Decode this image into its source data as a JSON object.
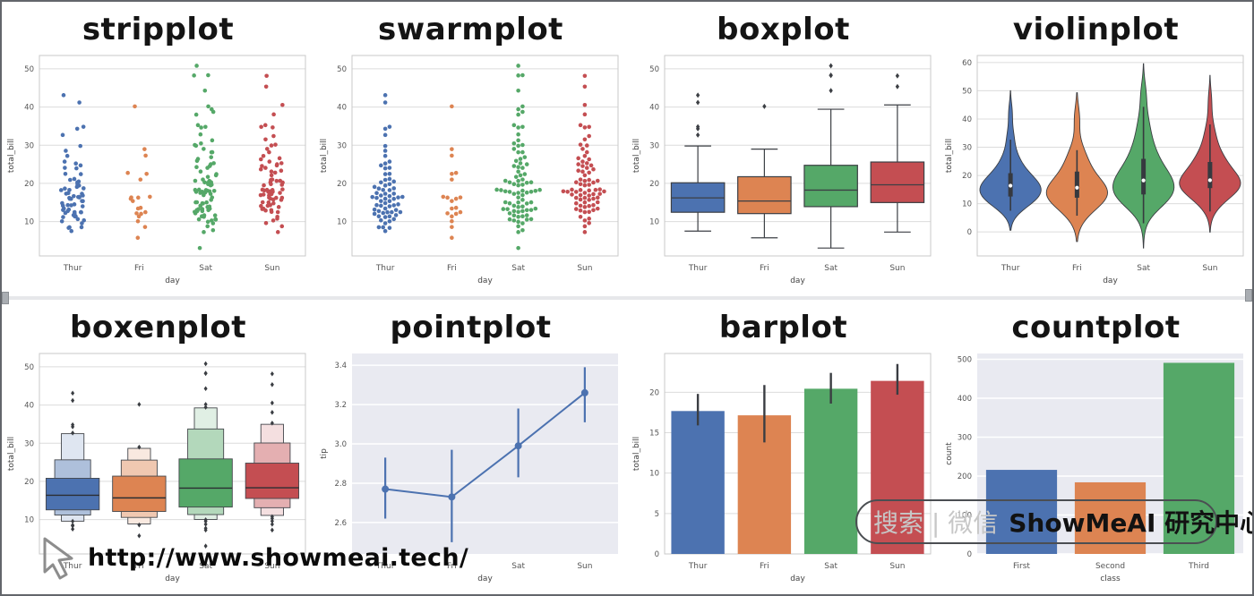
{
  "colors": {
    "palette": [
      "#4c72b0",
      "#dd8452",
      "#55a868",
      "#c44e52"
    ],
    "grid_bg": "#e9eaf1",
    "whitegrid_line": "#dcdcdc",
    "spine": "#c9c9c9",
    "tick_text": "#555555",
    "element_edge": "#3c3f44"
  },
  "datasets": {
    "tips_total_bill": [
      [
        7.51,
        8.35,
        8.51,
        8.52,
        9.55,
        10.07,
        10.33,
        10.65,
        11.17,
        11.35,
        11.38,
        11.69,
        12.03,
        12.26,
        12.43,
        12.46,
        12.48,
        12.74,
        13.03,
        13.16,
        13.42,
        14.0,
        14.15,
        14.26,
        14.31,
        14.52,
        14.83,
        15.36,
        15.38,
        15.95,
        15.98,
        16.2,
        16.32,
        16.43,
        16.47,
        16.66,
        16.82,
        17.29,
        17.31,
        17.47,
        18.24,
        18.28,
        18.64,
        18.71,
        19.08,
        19.44,
        19.81,
        20.27,
        20.49,
        20.92,
        21.16,
        22.42,
        22.49,
        23.95,
        24.08,
        24.71,
        25.21,
        25.71,
        27.2,
        28.55,
        29.8,
        32.68,
        34.3,
        34.83,
        41.19,
        43.11
      ],
      [
        5.75,
        8.58,
        10.09,
        11.35,
        12.03,
        12.16,
        12.46,
        13.42,
        13.61,
        15.38,
        15.98,
        16.27,
        16.32,
        16.49,
        21.01,
        22.49,
        22.75,
        27.28,
        28.97,
        40.17
      ],
      [
        3.07,
        7.25,
        7.74,
        8.77,
        9.55,
        9.94,
        10.29,
        10.51,
        10.59,
        10.63,
        11.24,
        11.38,
        11.61,
        11.64,
        12.16,
        12.54,
        12.74,
        12.76,
        13.0,
        13.03,
        13.27,
        13.28,
        13.39,
        13.81,
        13.94,
        14.15,
        14.73,
        14.78,
        15.01,
        15.04,
        15.06,
        15.69,
        16.31,
        16.93,
        17.26,
        17.51,
        17.59,
        17.78,
        17.81,
        17.92,
        18.04,
        18.09,
        18.24,
        18.29,
        18.35,
        19.49,
        19.65,
        19.82,
        20.16,
        20.27,
        20.29,
        20.65,
        20.69,
        21.01,
        21.7,
        22.12,
        22.42,
        23.1,
        24.06,
        24.27,
        24.55,
        25.0,
        25.28,
        25.89,
        26.41,
        26.86,
        28.15,
        28.17,
        29.03,
        29.85,
        30.06,
        30.46,
        31.27,
        32.83,
        34.63,
        34.81,
        35.26,
        38.01,
        38.73,
        39.42,
        40.17,
        44.3,
        48.27,
        48.33,
        50.81
      ],
      [
        7.25,
        8.77,
        9.6,
        10.29,
        10.77,
        11.24,
        12.48,
        12.54,
        12.9,
        13.0,
        13.28,
        13.39,
        13.81,
        14.07,
        14.15,
        14.31,
        14.78,
        15.01,
        15.06,
        15.69,
        15.77,
        16.0,
        16.21,
        16.22,
        16.27,
        16.82,
        16.93,
        17.07,
        17.18,
        17.26,
        17.51,
        17.78,
        17.81,
        17.89,
        17.92,
        18.15,
        18.26,
        18.29,
        18.35,
        18.43,
        19.49,
        19.63,
        19.81,
        20.23,
        20.29,
        20.65,
        20.69,
        20.9,
        21.01,
        22.12,
        22.82,
        23.1,
        23.33,
        23.68,
        24.06,
        24.55,
        24.71,
        25.0,
        25.29,
        25.71,
        26.31,
        26.59,
        27.18,
        28.17,
        29.03,
        29.93,
        30.14,
        31.52,
        32.4,
        34.65,
        34.81,
        35.26,
        38.07,
        40.55,
        45.35,
        48.17
      ]
    ]
  },
  "chart_data": [
    {
      "type": "strip",
      "title": "stripplot",
      "xlabel": "day",
      "ylabel": "total_bill",
      "categories": [
        "Thur",
        "Fri",
        "Sat",
        "Sun"
      ],
      "values_key": "tips_total_bill",
      "ylim": [
        1,
        53.5
      ],
      "yticks": [
        10,
        20,
        30,
        40,
        50
      ],
      "style": "whitegrid"
    },
    {
      "type": "swarm",
      "title": "swarmplot",
      "xlabel": "day",
      "ylabel": "total_bill",
      "categories": [
        "Thur",
        "Fri",
        "Sat",
        "Sun"
      ],
      "values_key": "tips_total_bill",
      "ylim": [
        1,
        53.5
      ],
      "yticks": [
        10,
        20,
        30,
        40,
        50
      ],
      "style": "whitegrid"
    },
    {
      "type": "box",
      "title": "boxplot",
      "xlabel": "day",
      "ylabel": "total_bill",
      "categories": [
        "Thur",
        "Fri",
        "Sat",
        "Sun"
      ],
      "stats": [
        {
          "lo": 7.51,
          "q1": 12.44,
          "med": 16.2,
          "q3": 20.16,
          "hi": 29.8,
          "out": [
            32.68,
            34.3,
            34.83,
            41.19,
            43.11
          ]
        },
        {
          "lo": 5.75,
          "q1": 12.09,
          "med": 15.38,
          "q3": 21.75,
          "hi": 28.97,
          "out": [
            40.17
          ]
        },
        {
          "lo": 3.07,
          "q1": 13.91,
          "med": 18.24,
          "q3": 24.74,
          "hi": 39.42,
          "out": [
            44.3,
            48.27,
            48.33,
            50.81
          ]
        },
        {
          "lo": 7.25,
          "q1": 14.98,
          "med": 19.63,
          "q3": 25.6,
          "hi": 40.55,
          "out": [
            45.35,
            48.17
          ]
        }
      ],
      "ylim": [
        1,
        53.5
      ],
      "yticks": [
        10,
        20,
        30,
        40,
        50
      ],
      "style": "whitegrid"
    },
    {
      "type": "violin",
      "title": "violinplot",
      "xlabel": "day",
      "ylabel": "total_bill",
      "categories": [
        "Thur",
        "Fri",
        "Sat",
        "Sun"
      ],
      "values_key": "tips_total_bill",
      "ylim": [
        -8.5,
        62.5
      ],
      "yticks": [
        0,
        10,
        20,
        30,
        40,
        50,
        60
      ],
      "style": "whitegrid"
    },
    {
      "type": "boxen",
      "title": "boxenplot",
      "xlabel": "day",
      "ylabel": "total_bill",
      "categories": [
        "Thur",
        "Fri",
        "Sat",
        "Sun"
      ],
      "values_key": "tips_total_bill",
      "ylim": [
        1,
        53.5
      ],
      "yticks": [
        10,
        20,
        30,
        40,
        50
      ],
      "style": "whitegrid"
    },
    {
      "type": "point",
      "title": "pointplot",
      "xlabel": "day",
      "ylabel": "tip",
      "categories": [
        "Thur",
        "Fri",
        "Sat",
        "Sun"
      ],
      "values": [
        2.77,
        2.73,
        2.99,
        3.26
      ],
      "ci": [
        [
          2.62,
          2.93
        ],
        [
          2.5,
          2.97
        ],
        [
          2.83,
          3.18
        ],
        [
          3.11,
          3.39
        ]
      ],
      "ylim": [
        2.44,
        3.46
      ],
      "yticks": [
        2.6,
        2.8,
        3.0,
        3.2,
        3.4
      ],
      "ydec": 1,
      "style": "darkgrid"
    },
    {
      "type": "bar",
      "title": "barplot",
      "xlabel": "day",
      "ylabel": "total_bill",
      "categories": [
        "Thur",
        "Fri",
        "Sat",
        "Sun"
      ],
      "values": [
        17.68,
        17.15,
        20.44,
        21.41
      ],
      "ci": [
        [
          15.9,
          19.8
        ],
        [
          13.8,
          20.9
        ],
        [
          18.6,
          22.4
        ],
        [
          19.7,
          23.5
        ]
      ],
      "ylim": [
        0,
        24.8
      ],
      "yticks": [
        0,
        5,
        10,
        15,
        20
      ],
      "style": "whitegrid"
    },
    {
      "type": "count",
      "title": "countplot",
      "xlabel": "class",
      "ylabel": "count",
      "categories": [
        "First",
        "Second",
        "Third"
      ],
      "values": [
        216,
        184,
        491
      ],
      "ylim": [
        0,
        515
      ],
      "yticks": [
        0,
        100,
        200,
        300,
        400,
        500
      ],
      "style": "darkgrid"
    }
  ],
  "overlays": {
    "watermark_url": "http://www.showmeai.tech/",
    "badge_search": "搜索 | 微信",
    "badge_brand": "ShowMeAI 研究中心"
  }
}
